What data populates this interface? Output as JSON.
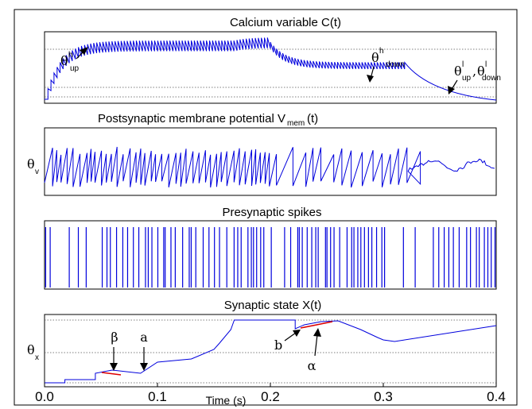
{
  "chart_data": [
    {
      "type": "line",
      "title": "Calcium variable C(t)",
      "annotations": [
        {
          "symbol": "θ",
          "sup": "h",
          "sub": "up"
        },
        {
          "symbol": "θ",
          "sup": "h",
          "sub": "down"
        },
        {
          "symbol": "θ",
          "sup": "l",
          "sub": "up",
          "sep": ",",
          "symbol2": "θ",
          "sup2": "l",
          "sub2": "down"
        }
      ]
    },
    {
      "type": "line",
      "title_main": "Postsynaptic membrane potential V",
      "title_sub": "mem",
      "title_end": "(t)",
      "threshold": {
        "symbol": "θ",
        "sub": "v"
      }
    },
    {
      "type": "line",
      "title": "Presynaptic spikes"
    },
    {
      "type": "line",
      "title": "Synaptic state X(t)",
      "threshold": {
        "symbol": "θ",
        "sub": "x"
      },
      "annotations": [
        {
          "label": "β",
          "x": 0.055
        },
        {
          "label": "a",
          "x": 0.085
        },
        {
          "label": "b",
          "x": 0.222
        },
        {
          "label": "α",
          "x": 0.24
        }
      ]
    }
  ],
  "x_axis": {
    "label": "Time (s)",
    "range": [
      0.0,
      0.4
    ],
    "ticks": [
      {
        "value": 0.0,
        "label": "0.0"
      },
      {
        "value": 0.1,
        "label": "0.1"
      },
      {
        "value": 0.2,
        "label": "0.2"
      },
      {
        "value": 0.3,
        "label": "0.3"
      },
      {
        "value": 0.4,
        "label": "0.4"
      }
    ]
  },
  "colors": {
    "trace": "#0000dd",
    "highlight": "#dd0000"
  }
}
